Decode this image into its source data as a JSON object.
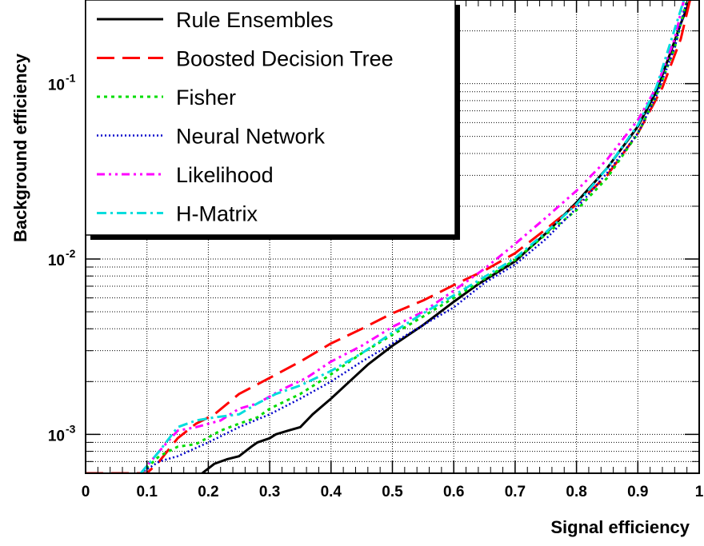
{
  "chart_data": {
    "type": "line",
    "xlabel": "Signal efficiency",
    "ylabel": "Background efficiency",
    "xlim": [
      0,
      1
    ],
    "ylim": [
      0.0006,
      0.3
    ],
    "y_scale": "log",
    "grid": true,
    "legend_position": "top-left",
    "x_ticks": [
      "0",
      "0.1",
      "0.2",
      "0.3",
      "0.4",
      "0.5",
      "0.6",
      "0.7",
      "0.8",
      "0.9",
      "1"
    ],
    "x_tick_values": [
      0,
      0.1,
      0.2,
      0.3,
      0.4,
      0.5,
      0.6,
      0.7,
      0.8,
      0.9,
      1
    ],
    "y_ticks": [
      {
        "value": 0.001,
        "base": "10",
        "exp": "-3"
      },
      {
        "value": 0.01,
        "base": "10",
        "exp": "-2"
      },
      {
        "value": 0.1,
        "base": "10",
        "exp": "-1"
      }
    ],
    "series": [
      {
        "name": "Rule Ensembles",
        "color": "#000000",
        "dash": "none",
        "width": 3,
        "x": [
          0.19,
          0.21,
          0.23,
          0.25,
          0.27,
          0.28,
          0.3,
          0.31,
          0.33,
          0.35,
          0.37,
          0.4,
          0.43,
          0.46,
          0.5,
          0.55,
          0.6,
          0.64,
          0.7,
          0.75,
          0.8,
          0.85,
          0.9,
          0.93,
          0.95,
          0.97,
          0.985
        ],
        "y": [
          0.0006,
          0.00068,
          0.00072,
          0.00075,
          0.00085,
          0.0009,
          0.00095,
          0.001,
          0.00105,
          0.0011,
          0.0013,
          0.0016,
          0.002,
          0.0025,
          0.0032,
          0.0042,
          0.0057,
          0.0072,
          0.0097,
          0.014,
          0.021,
          0.033,
          0.057,
          0.09,
          0.14,
          0.22,
          0.3
        ]
      },
      {
        "name": "Boosted Decision Tree",
        "color": "#ff0000",
        "dash": "22,10",
        "width": 3,
        "x": [
          0,
          0.1,
          0.12,
          0.15,
          0.18,
          0.21,
          0.25,
          0.3,
          0.35,
          0.4,
          0.45,
          0.5,
          0.55,
          0.6,
          0.65,
          0.7,
          0.75,
          0.8,
          0.85,
          0.9,
          0.94,
          0.97,
          0.985
        ],
        "y": [
          0.0006,
          0.0006,
          0.0007,
          0.00095,
          0.00115,
          0.0013,
          0.0017,
          0.0021,
          0.0026,
          0.0033,
          0.004,
          0.0049,
          0.0058,
          0.0071,
          0.0086,
          0.0108,
          0.0148,
          0.0205,
          0.03,
          0.052,
          0.095,
          0.18,
          0.3
        ]
      },
      {
        "name": "Fisher",
        "color": "#00dd00",
        "dash": "4,5",
        "width": 3,
        "x": [
          0.09,
          0.12,
          0.15,
          0.18,
          0.22,
          0.25,
          0.28,
          0.3,
          0.35,
          0.4,
          0.45,
          0.5,
          0.55,
          0.6,
          0.65,
          0.7,
          0.75,
          0.8,
          0.85,
          0.9,
          0.93,
          0.96,
          0.98
        ],
        "y": [
          0.0006,
          0.00075,
          0.00085,
          0.00088,
          0.00105,
          0.00115,
          0.00125,
          0.0014,
          0.0017,
          0.0022,
          0.0029,
          0.0037,
          0.0047,
          0.006,
          0.0077,
          0.0099,
          0.0138,
          0.019,
          0.029,
          0.052,
          0.085,
          0.16,
          0.3
        ]
      },
      {
        "name": "Neural Network",
        "color": "#0000cc",
        "dash": "2,3",
        "width": 2.5,
        "x": [
          0.09,
          0.12,
          0.15,
          0.2,
          0.25,
          0.3,
          0.35,
          0.4,
          0.45,
          0.5,
          0.55,
          0.6,
          0.65,
          0.7,
          0.75,
          0.8,
          0.85,
          0.9,
          0.93,
          0.96,
          0.98
        ],
        "y": [
          0.0006,
          0.0007,
          0.00075,
          0.0009,
          0.0011,
          0.0013,
          0.0016,
          0.002,
          0.0026,
          0.0033,
          0.0042,
          0.0053,
          0.0073,
          0.0093,
          0.013,
          0.0195,
          0.031,
          0.052,
          0.085,
          0.16,
          0.3
        ]
      },
      {
        "name": "Likelihood",
        "color": "#ff00ff",
        "dash": "10,5,3,5,3,5",
        "width": 3,
        "x": [
          0.09,
          0.12,
          0.15,
          0.18,
          0.22,
          0.25,
          0.28,
          0.32,
          0.36,
          0.4,
          0.45,
          0.5,
          0.55,
          0.6,
          0.65,
          0.7,
          0.75,
          0.8,
          0.85,
          0.9,
          0.93,
          0.96,
          0.975
        ],
        "y": [
          0.0006,
          0.0008,
          0.00105,
          0.0011,
          0.0012,
          0.0014,
          0.0015,
          0.0018,
          0.0021,
          0.0026,
          0.0032,
          0.0041,
          0.005,
          0.0066,
          0.0088,
          0.0122,
          0.0172,
          0.0245,
          0.037,
          0.062,
          0.095,
          0.18,
          0.3
        ]
      },
      {
        "name": "H-Matrix",
        "color": "#00dddd",
        "dash": "12,5,3,5",
        "width": 3,
        "x": [
          0.09,
          0.12,
          0.15,
          0.18,
          0.21,
          0.25,
          0.28,
          0.31,
          0.35,
          0.4,
          0.45,
          0.5,
          0.55,
          0.6,
          0.65,
          0.7,
          0.75,
          0.8,
          0.85,
          0.9,
          0.93,
          0.955,
          0.975
        ],
        "y": [
          0.0006,
          0.0008,
          0.0011,
          0.0012,
          0.00125,
          0.0013,
          0.0015,
          0.0017,
          0.0019,
          0.0023,
          0.0029,
          0.0038,
          0.0049,
          0.0062,
          0.0079,
          0.0101,
          0.0142,
          0.0205,
          0.033,
          0.058,
          0.095,
          0.18,
          0.3
        ]
      }
    ]
  }
}
